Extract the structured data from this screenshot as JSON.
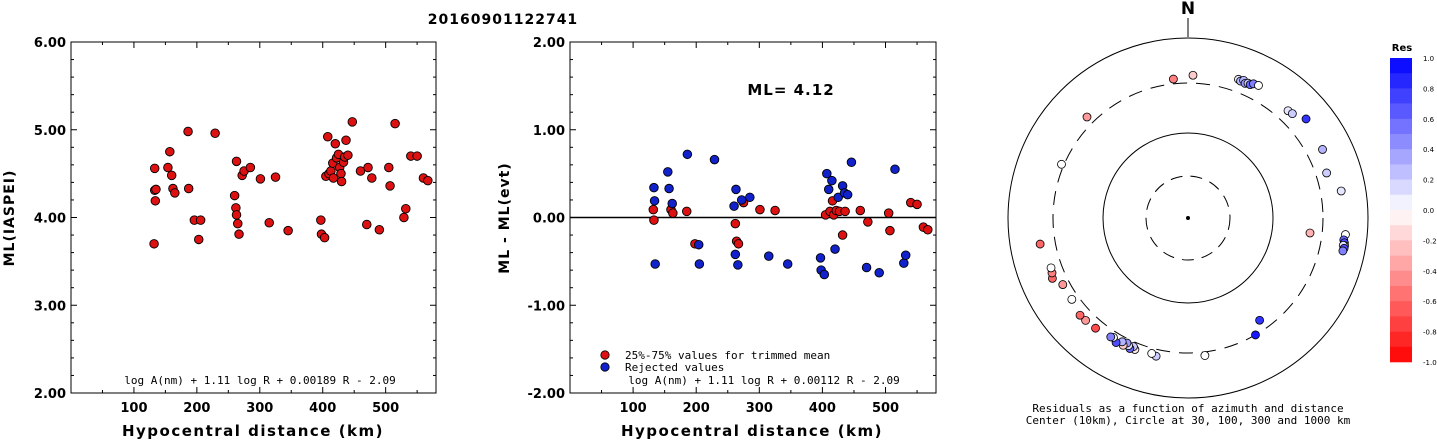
{
  "page_title": "20160901122741",
  "chart_data": [
    {
      "type": "scatter",
      "xlabel": "Hypocentral distance (km)",
      "ylabel": "ML(IASPEI)",
      "xlim": [
        0,
        580
      ],
      "ylim": [
        2.0,
        6.0
      ],
      "xticks": [
        "100",
        "200",
        "300",
        "400",
        "500"
      ],
      "yticks": [
        "2.00",
        "3.00",
        "4.00",
        "5.00",
        "6.00"
      ],
      "formula": "log A(nm) + 1.11 log R + 0.00189 R - 2.09",
      "marker_color": "#dd1111",
      "points": [
        {
          "x": 132,
          "y": 3.7
        },
        {
          "x": 133,
          "y": 4.56
        },
        {
          "x": 133,
          "y": 4.31
        },
        {
          "x": 134,
          "y": 4.19
        },
        {
          "x": 135,
          "y": 4.32
        },
        {
          "x": 154,
          "y": 4.57
        },
        {
          "x": 157,
          "y": 4.75
        },
        {
          "x": 160,
          "y": 4.48
        },
        {
          "x": 162,
          "y": 4.33
        },
        {
          "x": 165,
          "y": 4.28
        },
        {
          "x": 186,
          "y": 4.98
        },
        {
          "x": 187,
          "y": 4.33
        },
        {
          "x": 196,
          "y": 3.97
        },
        {
          "x": 203,
          "y": 3.75
        },
        {
          "x": 206,
          "y": 3.97
        },
        {
          "x": 229,
          "y": 4.96
        },
        {
          "x": 260,
          "y": 4.25
        },
        {
          "x": 262,
          "y": 4.11
        },
        {
          "x": 263,
          "y": 4.03
        },
        {
          "x": 263,
          "y": 4.64
        },
        {
          "x": 265,
          "y": 3.93
        },
        {
          "x": 267,
          "y": 3.81
        },
        {
          "x": 272,
          "y": 4.48
        },
        {
          "x": 275,
          "y": 4.53
        },
        {
          "x": 285,
          "y": 4.57
        },
        {
          "x": 301,
          "y": 4.44
        },
        {
          "x": 315,
          "y": 3.94
        },
        {
          "x": 325,
          "y": 4.46
        },
        {
          "x": 345,
          "y": 3.85
        },
        {
          "x": 397,
          "y": 3.97
        },
        {
          "x": 398,
          "y": 3.81
        },
        {
          "x": 403,
          "y": 3.77
        },
        {
          "x": 405,
          "y": 4.47
        },
        {
          "x": 408,
          "y": 4.92
        },
        {
          "x": 410,
          "y": 4.5
        },
        {
          "x": 413,
          "y": 4.53
        },
        {
          "x": 416,
          "y": 4.62
        },
        {
          "x": 417,
          "y": 4.45
        },
        {
          "x": 420,
          "y": 4.84
        },
        {
          "x": 422,
          "y": 4.68
        },
        {
          "x": 425,
          "y": 4.72
        },
        {
          "x": 427,
          "y": 4.57
        },
        {
          "x": 429,
          "y": 4.5
        },
        {
          "x": 430,
          "y": 4.41
        },
        {
          "x": 433,
          "y": 4.63
        },
        {
          "x": 435,
          "y": 4.69
        },
        {
          "x": 437,
          "y": 4.88
        },
        {
          "x": 440,
          "y": 4.71
        },
        {
          "x": 447,
          "y": 5.09
        },
        {
          "x": 460,
          "y": 4.53
        },
        {
          "x": 470,
          "y": 3.92
        },
        {
          "x": 472,
          "y": 4.57
        },
        {
          "x": 478,
          "y": 4.45
        },
        {
          "x": 490,
          "y": 3.86
        },
        {
          "x": 505,
          "y": 4.57
        },
        {
          "x": 507,
          "y": 4.36
        },
        {
          "x": 515,
          "y": 5.07
        },
        {
          "x": 529,
          "y": 4.0
        },
        {
          "x": 532,
          "y": 4.1
        },
        {
          "x": 540,
          "y": 4.7
        },
        {
          "x": 550,
          "y": 4.7
        },
        {
          "x": 560,
          "y": 4.45
        },
        {
          "x": 567,
          "y": 4.42
        }
      ]
    },
    {
      "type": "scatter",
      "xlabel": "Hypocentral distance (km)",
      "ylabel": "ML - ML(evt)",
      "xlim": [
        0,
        580
      ],
      "ylim": [
        -2.0,
        2.0
      ],
      "xticks": [
        "100",
        "200",
        "300",
        "400",
        "500"
      ],
      "yticks": [
        "-2.00",
        "-1.00",
        "0.00",
        "1.00",
        "2.00"
      ],
      "annotation": "ML= 4.12",
      "formula": "log A(nm) + 1.11 log R + 0.00112 R - 2.09",
      "reference_line": 0.0,
      "legend_placement": "bottom-left",
      "series": [
        {
          "name": "25%-75% values for trimmed mean",
          "color": "#dd1111",
          "points": [
            {
              "x": 132,
              "y": 0.09
            },
            {
              "x": 133,
              "y": -0.03
            },
            {
              "x": 160,
              "y": 0.09
            },
            {
              "x": 163,
              "y": 0.05
            },
            {
              "x": 185,
              "y": 0.07
            },
            {
              "x": 198,
              "y": -0.3
            },
            {
              "x": 262,
              "y": -0.07
            },
            {
              "x": 264,
              "y": -0.27
            },
            {
              "x": 267,
              "y": -0.3
            },
            {
              "x": 275,
              "y": 0.17
            },
            {
              "x": 301,
              "y": 0.09
            },
            {
              "x": 325,
              "y": 0.08
            },
            {
              "x": 405,
              "y": 0.03
            },
            {
              "x": 412,
              "y": 0.07
            },
            {
              "x": 416,
              "y": 0.19
            },
            {
              "x": 418,
              "y": 0.03
            },
            {
              "x": 422,
              "y": 0.08
            },
            {
              "x": 427,
              "y": 0.07
            },
            {
              "x": 432,
              "y": -0.2
            },
            {
              "x": 436,
              "y": 0.07
            },
            {
              "x": 460,
              "y": 0.08
            },
            {
              "x": 472,
              "y": -0.05
            },
            {
              "x": 505,
              "y": 0.05
            },
            {
              "x": 507,
              "y": -0.15
            },
            {
              "x": 540,
              "y": 0.17
            },
            {
              "x": 550,
              "y": 0.15
            },
            {
              "x": 560,
              "y": -0.11
            },
            {
              "x": 567,
              "y": -0.14
            }
          ]
        },
        {
          "name": "Rejected values",
          "color": "#1122cc",
          "points": [
            {
              "x": 133,
              "y": 0.34
            },
            {
              "x": 134,
              "y": 0.19
            },
            {
              "x": 135,
              "y": -0.53
            },
            {
              "x": 155,
              "y": 0.52
            },
            {
              "x": 157,
              "y": 0.33
            },
            {
              "x": 162,
              "y": 0.16
            },
            {
              "x": 186,
              "y": 0.72
            },
            {
              "x": 204,
              "y": -0.31
            },
            {
              "x": 205,
              "y": -0.53
            },
            {
              "x": 229,
              "y": 0.66
            },
            {
              "x": 260,
              "y": 0.13
            },
            {
              "x": 262,
              "y": -0.42
            },
            {
              "x": 263,
              "y": 0.32
            },
            {
              "x": 266,
              "y": -0.54
            },
            {
              "x": 272,
              "y": 0.2
            },
            {
              "x": 285,
              "y": 0.23
            },
            {
              "x": 315,
              "y": -0.44
            },
            {
              "x": 345,
              "y": -0.53
            },
            {
              "x": 397,
              "y": -0.46
            },
            {
              "x": 398,
              "y": -0.6
            },
            {
              "x": 403,
              "y": -0.65
            },
            {
              "x": 407,
              "y": 0.5
            },
            {
              "x": 410,
              "y": 0.32
            },
            {
              "x": 415,
              "y": 0.42
            },
            {
              "x": 420,
              "y": -0.36
            },
            {
              "x": 425,
              "y": 0.23
            },
            {
              "x": 432,
              "y": 0.36
            },
            {
              "x": 435,
              "y": 0.28
            },
            {
              "x": 440,
              "y": 0.26
            },
            {
              "x": 446,
              "y": 0.63
            },
            {
              "x": 470,
              "y": -0.57
            },
            {
              "x": 490,
              "y": -0.63
            },
            {
              "x": 515,
              "y": 0.55
            },
            {
              "x": 529,
              "y": -0.52
            },
            {
              "x": 532,
              "y": -0.43
            }
          ]
        }
      ]
    },
    {
      "type": "scatter",
      "subtype": "polar residual plot",
      "north_label": "N",
      "caption_line1": "Residuals as a function of azimuth and distance",
      "caption_line2": "Center (10km), Circle at 30, 100, 300 and 1000 km",
      "colorbar": {
        "title": "Res",
        "min": -1.0,
        "max": 1.0,
        "labels": [
          "1.0",
          "0.8",
          "0.6",
          "0.4",
          "0.2",
          "0.0",
          "-0.2",
          "-0.4",
          "-0.6",
          "-0.8",
          "-1.0"
        ],
        "positive_color": "#0000ff",
        "negative_color": "#ff0000"
      },
      "points": [
        {
          "az": 354,
          "dist": 340,
          "res": -0.5
        },
        {
          "az": 2,
          "dist": 370,
          "res": -0.2
        },
        {
          "az": 20,
          "dist": 420,
          "res": 0.1
        },
        {
          "az": 21,
          "dist": 410,
          "res": 0.3
        },
        {
          "az": 22,
          "dist": 430,
          "res": 0.3
        },
        {
          "az": 23,
          "dist": 405,
          "res": 0.4
        },
        {
          "az": 24,
          "dist": 420,
          "res": 0.2
        },
        {
          "az": 25,
          "dist": 415,
          "res": 0.6
        },
        {
          "az": 26,
          "dist": 440,
          "res": 0.5
        },
        {
          "az": 28,
          "dist": 450,
          "res": 0.0
        },
        {
          "az": 43,
          "dist": 410,
          "res": 0.1
        },
        {
          "az": 45,
          "dist": 420,
          "res": 0.2
        },
        {
          "az": 50,
          "dist": 500,
          "res": 0.8
        },
        {
          "az": 63,
          "dist": 460,
          "res": 0.3
        },
        {
          "az": 72,
          "dist": 400,
          "res": 0.2
        },
        {
          "az": 80,
          "dist": 520,
          "res": 0.1
        },
        {
          "az": 96,
          "dist": 560,
          "res": 0.0
        },
        {
          "az": 98,
          "dist": 545,
          "res": 0.6
        },
        {
          "az": 99,
          "dist": 560,
          "res": 0.7
        },
        {
          "az": 100,
          "dist": 570,
          "res": 0.3
        },
        {
          "az": 100,
          "dist": 550,
          "res": 0.1
        },
        {
          "az": 101,
          "dist": 570,
          "res": 0.7
        },
        {
          "az": 102,
          "dist": 560,
          "res": 0.5
        },
        {
          "az": 97,
          "dist": 230,
          "res": -0.3
        },
        {
          "az": 145,
          "dist": 240,
          "res": 0.8
        },
        {
          "az": 150,
          "dist": 300,
          "res": 0.9
        },
        {
          "az": 173,
          "dist": 330,
          "res": 0.0
        },
        {
          "az": 193,
          "dist": 360,
          "res": 0.2
        },
        {
          "az": 195,
          "dist": 345,
          "res": 0.0
        },
        {
          "az": 202,
          "dist": 360,
          "res": -0.1
        },
        {
          "az": 203,
          "dist": 340,
          "res": 0.2
        },
        {
          "az": 204,
          "dist": 370,
          "res": 0.6
        },
        {
          "az": 205,
          "dist": 350,
          "res": 0.1
        },
        {
          "az": 206,
          "dist": 335,
          "res": 0.4
        },
        {
          "az": 207,
          "dist": 370,
          "res": -0.2
        },
        {
          "az": 208,
          "dist": 345,
          "res": 0.3
        },
        {
          "az": 210,
          "dist": 380,
          "res": 0.7
        },
        {
          "az": 212,
          "dist": 350,
          "res": 0.0
        },
        {
          "az": 213,
          "dist": 360,
          "res": 0.5
        },
        {
          "az": 220,
          "dist": 380,
          "res": -0.7
        },
        {
          "az": 225,
          "dist": 390,
          "res": -0.4
        },
        {
          "az": 228,
          "dist": 395,
          "res": -0.6
        },
        {
          "az": 242,
          "dist": 360,
          "res": -0.4
        },
        {
          "az": 235,
          "dist": 360,
          "res": 0.0
        },
        {
          "az": 246,
          "dist": 430,
          "res": -0.6
        },
        {
          "az": 248,
          "dist": 410,
          "res": -0.5
        },
        {
          "az": 250,
          "dist": 400,
          "res": 0.0
        },
        {
          "az": 260,
          "dist": 450,
          "res": -0.6
        },
        {
          "az": 293,
          "dist": 320,
          "res": 0.0
        },
        {
          "az": 315,
          "dist": 370,
          "res": -0.4
        }
      ]
    }
  ]
}
